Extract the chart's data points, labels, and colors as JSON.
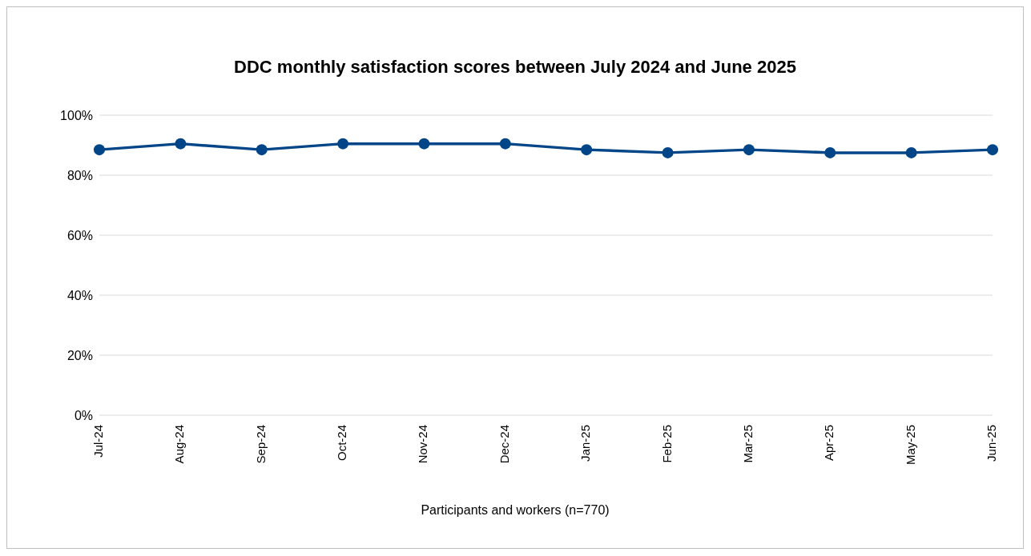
{
  "chart_data": {
    "type": "line",
    "title": "DDC monthly satisfaction scores between July 2024 and June 2025",
    "xlabel": "Participants and workers (n=770)",
    "categories": [
      "Jul-24",
      "Aug-24",
      "Sep-24",
      "Oct-24",
      "Nov-24",
      "Dec-24",
      "Jan-25",
      "Feb-25",
      "Mar-25",
      "Apr-25",
      "May-25",
      "Jun-25"
    ],
    "series": [
      {
        "color": "#004587",
        "values": [
          88.5,
          90.5,
          88.5,
          90.5,
          90.5,
          90.5,
          88.5,
          87.5,
          88.5,
          87.5,
          87.5,
          88.5
        ]
      }
    ],
    "ylim": [
      0,
      100
    ],
    "yticks": [
      {
        "value": 0,
        "label": "0%"
      },
      {
        "value": 20,
        "label": "20%"
      },
      {
        "value": 40,
        "label": "40%"
      },
      {
        "value": 60,
        "label": "60%"
      },
      {
        "value": 80,
        "label": "80%"
      },
      {
        "value": 100,
        "label": "100%"
      }
    ],
    "grid": "y",
    "legend": false,
    "marker": "circle",
    "line_style": "solid"
  }
}
